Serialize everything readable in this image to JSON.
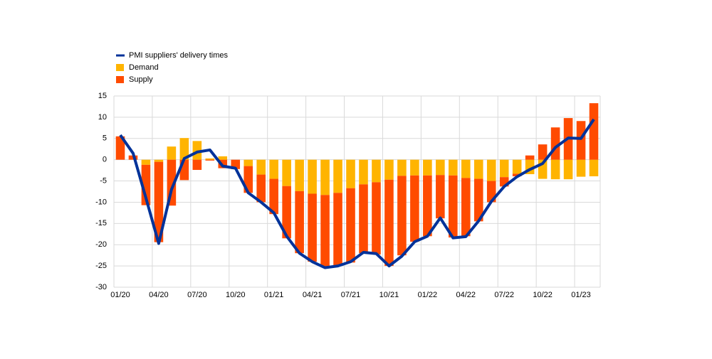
{
  "chart_data": {
    "type": "bar",
    "stacked": true,
    "categories": [
      "01/20",
      null,
      null,
      "04/20",
      null,
      null,
      "07/20",
      null,
      null,
      "10/20",
      null,
      null,
      "01/21",
      null,
      null,
      "04/21",
      null,
      null,
      "07/21",
      null,
      null,
      "10/21",
      null,
      null,
      "01/22",
      null,
      null,
      "04/22",
      null,
      null,
      "07/22",
      null,
      null,
      "10/22",
      null,
      null,
      "01/23",
      null
    ],
    "series": [
      {
        "name": "PMI suppliers' delivery times",
        "type": "line",
        "color": "#003299",
        "values": [
          5.8,
          1.5,
          -9,
          -19.7,
          -7,
          0.3,
          1.8,
          2.3,
          -1.5,
          -2,
          -7.8,
          -10,
          -12.5,
          -18,
          -22,
          -24,
          -25.4,
          -25,
          -24,
          -21.8,
          -22.1,
          -25,
          -22.7,
          -19.3,
          -18,
          -13.7,
          -18.4,
          -18.1,
          -14.4,
          -9.8,
          -6.3,
          -4,
          -2.3,
          -0.9,
          2.9,
          5.1,
          5,
          9.5
        ]
      },
      {
        "name": "Demand",
        "type": "bar",
        "color": "#ffb400",
        "values": [
          0,
          0,
          -1.2,
          -0.5,
          3.1,
          5.1,
          4.4,
          0.3,
          0.8,
          0,
          -1.5,
          -3.5,
          -4.5,
          -6.2,
          -7.4,
          -8,
          -8.3,
          -7.8,
          -6.7,
          -5.8,
          -5.3,
          -4.7,
          -3.8,
          -3.7,
          -3.7,
          -3.6,
          -3.7,
          -4.3,
          -4.5,
          -5,
          -4.1,
          -3.3,
          -3.4,
          -4.5,
          -4.6,
          -4.6,
          -4,
          -3.9
        ]
      },
      {
        "name": "Supply",
        "type": "bar",
        "color": "#ff4b00",
        "values": [
          5.5,
          1,
          -9.5,
          -18.9,
          -10.8,
          -4.8,
          -2.4,
          -0.2,
          -2,
          -2.2,
          -6.3,
          -6.5,
          -8.3,
          -12.3,
          -14.6,
          -16,
          -16.9,
          -17.2,
          -17.5,
          -16.2,
          -17,
          -20.3,
          -18.7,
          -15.6,
          -14.3,
          -10.2,
          -14.6,
          -13.7,
          -10,
          -5,
          -2.2,
          -0.6,
          1,
          3.6,
          7.6,
          9.8,
          9.1,
          13.3
        ]
      }
    ],
    "ylim": [
      -30,
      15
    ],
    "yticks": [
      -30,
      -25,
      -20,
      -15,
      -10,
      -5,
      0,
      5,
      10,
      15
    ],
    "grid": true,
    "legend": "top-left"
  }
}
